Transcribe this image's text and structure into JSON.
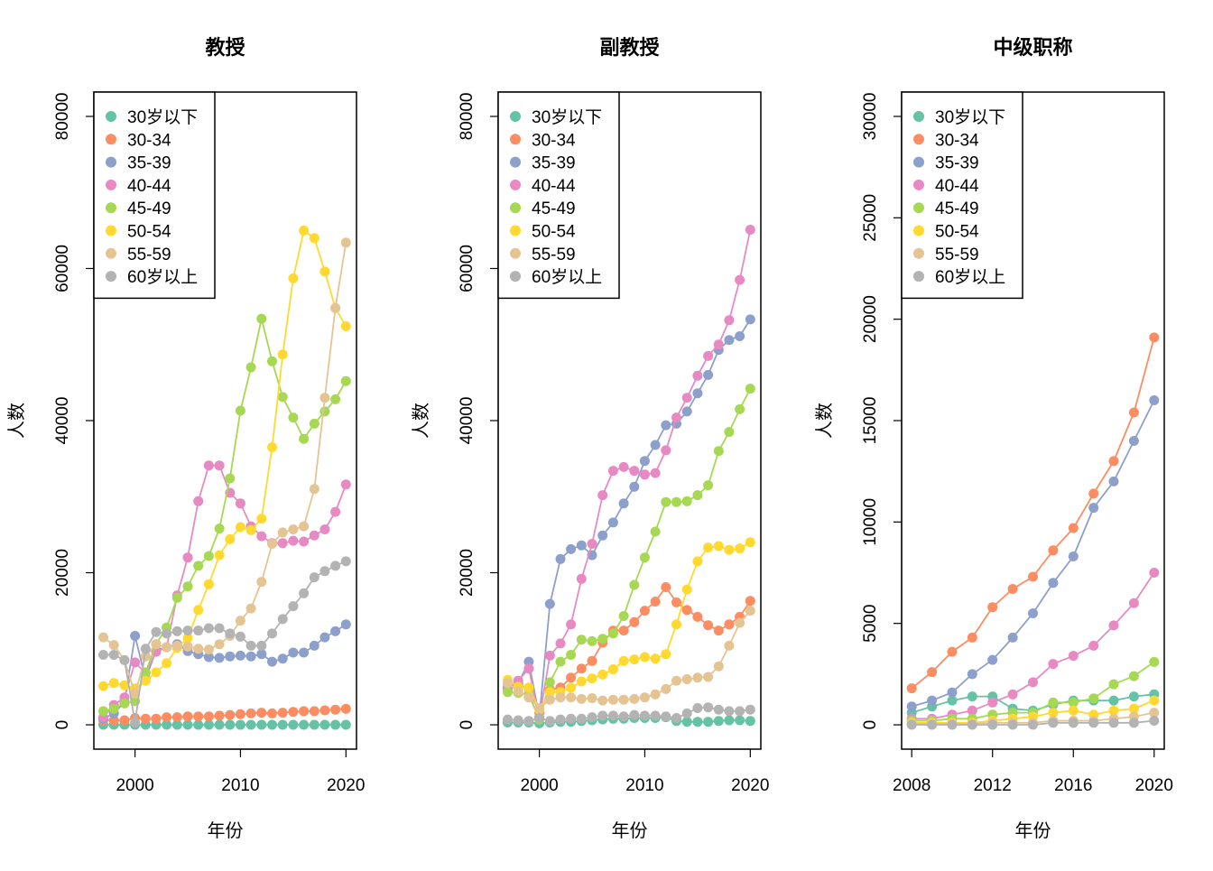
{
  "chart_data": [
    {
      "type": "line",
      "title": "教授",
      "xlabel": "年份",
      "ylabel": "人数",
      "xlim": [
        1996.1,
        2021.0
      ],
      "ylim": [
        -3200,
        83200
      ],
      "xticks": [
        2000,
        2010,
        2020
      ],
      "xtick_labels": [
        "2000",
        "2010",
        "2020"
      ],
      "yticks": [
        0,
        20000,
        40000,
        60000,
        80000
      ],
      "ytick_labels": [
        "0",
        "20000",
        "40000",
        "60000",
        "80000"
      ],
      "legend_position": "top-left",
      "grid": false,
      "x": [
        1997,
        1998,
        1999,
        2000,
        2001,
        2002,
        2003,
        2004,
        2005,
        2006,
        2007,
        2008,
        2009,
        2010,
        2011,
        2012,
        2013,
        2014,
        2015,
        2016,
        2017,
        2018,
        2019,
        2020
      ],
      "series": [
        {
          "name": "30岁以下",
          "color": "#66c2a5",
          "values": [
            0,
            0,
            0,
            0,
            0,
            0,
            0,
            0,
            0,
            0,
            0,
            0,
            0,
            0,
            0,
            0,
            0,
            0,
            0,
            0,
            0,
            0,
            0,
            0
          ]
        },
        {
          "name": "30-34",
          "color": "#fc8d62",
          "values": [
            600,
            600,
            600,
            900,
            800,
            800,
            1000,
            1000,
            1100,
            1100,
            1100,
            1200,
            1300,
            1400,
            1500,
            1600,
            1500,
            1600,
            1700,
            1800,
            1800,
            1900,
            2000,
            2100
          ]
        },
        {
          "name": "35-39",
          "color": "#8da0cb",
          "values": [
            800,
            1500,
            3000,
            11700,
            6000,
            9800,
            10200,
            10600,
            9700,
            9300,
            8900,
            8800,
            9000,
            9100,
            9000,
            9300,
            8300,
            8700,
            9500,
            9500,
            10400,
            11500,
            12300,
            13200
          ]
        },
        {
          "name": "40-44",
          "color": "#e78ac3",
          "values": [
            1000,
            2600,
            3600,
            8200,
            6800,
            9600,
            10200,
            17000,
            22000,
            29400,
            34100,
            34100,
            30500,
            29100,
            26100,
            24800,
            23900,
            23900,
            24200,
            24100,
            24900,
            25700,
            28000,
            31600
          ]
        },
        {
          "name": "45-49",
          "color": "#a6d854",
          "values": [
            1800,
            2100,
            2800,
            3100,
            6900,
            10600,
            12800,
            16700,
            18200,
            20900,
            22200,
            25800,
            32400,
            41300,
            47000,
            53400,
            47800,
            43100,
            40400,
            37600,
            39600,
            41200,
            42800,
            45200
          ]
        },
        {
          "name": "50-54",
          "color": "#ffd92f",
          "values": [
            5100,
            5500,
            5200,
            4800,
            5800,
            6900,
            8100,
            10100,
            11400,
            15100,
            18500,
            22300,
            24400,
            26000,
            25600,
            27100,
            36500,
            48700,
            58700,
            65000,
            64000,
            59600,
            54800,
            52400
          ]
        },
        {
          "name": "55-59",
          "color": "#e5c494",
          "values": [
            11500,
            10500,
            8500,
            4100,
            9000,
            10600,
            10200,
            10400,
            10300,
            10000,
            9900,
            10600,
            11700,
            13700,
            15300,
            18800,
            23800,
            25300,
            25700,
            26100,
            31000,
            43000,
            54800,
            63400
          ]
        },
        {
          "name": "60岁以上",
          "color": "#b3b3b3",
          "values": [
            9200,
            9200,
            8500,
            300,
            10000,
            12200,
            12000,
            12300,
            12400,
            12400,
            12700,
            12700,
            12000,
            11600,
            10400,
            10400,
            12000,
            13900,
            15600,
            17300,
            19400,
            20200,
            20900,
            21500
          ]
        }
      ]
    },
    {
      "type": "line",
      "title": "副教授",
      "xlabel": "年份",
      "ylabel": "人数",
      "xlim": [
        1996.1,
        2021.0
      ],
      "ylim": [
        -3200,
        83200
      ],
      "xticks": [
        2000,
        2010,
        2020
      ],
      "xtick_labels": [
        "2000",
        "2010",
        "2020"
      ],
      "yticks": [
        0,
        20000,
        40000,
        60000,
        80000
      ],
      "ytick_labels": [
        "0",
        "20000",
        "40000",
        "60000",
        "80000"
      ],
      "legend_position": "top-left",
      "grid": false,
      "x": [
        1997,
        1998,
        1999,
        2000,
        2001,
        2002,
        2003,
        2004,
        2005,
        2006,
        2007,
        2008,
        2009,
        2010,
        2011,
        2012,
        2013,
        2014,
        2015,
        2016,
        2017,
        2018,
        2019,
        2020
      ],
      "series": [
        {
          "name": "30岁以下",
          "color": "#66c2a5",
          "values": [
            300,
            300,
            300,
            200,
            300,
            400,
            400,
            500,
            600,
            700,
            800,
            800,
            900,
            900,
            900,
            1000,
            500,
            400,
            400,
            400,
            500,
            600,
            600,
            500
          ]
        },
        {
          "name": "30-34",
          "color": "#fc8d62",
          "values": [
            5000,
            5300,
            4800,
            1600,
            4600,
            4900,
            6200,
            7400,
            8400,
            10800,
            12400,
            12400,
            13500,
            15000,
            16200,
            18100,
            16100,
            15100,
            14200,
            13100,
            12400,
            13200,
            14200,
            16300
          ]
        },
        {
          "name": "35-39",
          "color": "#8da0cb",
          "values": [
            4500,
            5400,
            8300,
            1000,
            15900,
            21800,
            23100,
            23600,
            22300,
            24900,
            26600,
            29100,
            31300,
            34700,
            36800,
            39400,
            39600,
            41200,
            43600,
            46000,
            49300,
            50600,
            51100,
            53300
          ]
        },
        {
          "name": "40-44",
          "color": "#e78ac3",
          "values": [
            4700,
            5800,
            7400,
            900,
            9100,
            10700,
            13200,
            19200,
            23800,
            30200,
            33400,
            33900,
            33400,
            32900,
            33100,
            36100,
            40400,
            43000,
            45900,
            48500,
            50000,
            53200,
            58500,
            65100
          ]
        },
        {
          "name": "45-49",
          "color": "#a6d854",
          "values": [
            4300,
            4200,
            4000,
            700,
            5600,
            8300,
            9200,
            11200,
            11000,
            11300,
            12000,
            14300,
            18400,
            22000,
            25400,
            29300,
            29300,
            29400,
            30200,
            31500,
            36000,
            38500,
            41500,
            44200
          ]
        },
        {
          "name": "50-54",
          "color": "#ffd92f",
          "values": [
            5900,
            5000,
            4900,
            2000,
            4300,
            4300,
            4900,
            5700,
            6100,
            6600,
            7300,
            8400,
            8600,
            8900,
            8700,
            9300,
            13200,
            17800,
            21500,
            23300,
            23500,
            23000,
            23200,
            24000
          ]
        },
        {
          "name": "55-59",
          "color": "#e5c494",
          "values": [
            5500,
            4400,
            3600,
            2200,
            3300,
            3600,
            3600,
            3400,
            3500,
            3200,
            3300,
            3300,
            3400,
            3600,
            4000,
            4700,
            5800,
            6000,
            6200,
            6300,
            7700,
            10400,
            13400,
            15000
          ]
        },
        {
          "name": "60岁以上",
          "color": "#b3b3b3",
          "values": [
            700,
            600,
            500,
            900,
            500,
            700,
            800,
            800,
            1000,
            1200,
            1200,
            1100,
            1300,
            1200,
            1200,
            1100,
            900,
            1500,
            2200,
            2300,
            2000,
            1800,
            1800,
            2000
          ]
        }
      ]
    },
    {
      "type": "line",
      "title": "中级职称",
      "xlabel": "年份",
      "ylabel": "人数",
      "xlim": [
        2007.5,
        2020.5
      ],
      "ylim": [
        -1200,
        31200
      ],
      "xticks": [
        2008,
        2012,
        2016,
        2020
      ],
      "xtick_labels": [
        "2008",
        "2012",
        "2016",
        "2020"
      ],
      "yticks": [
        0,
        5000,
        10000,
        15000,
        20000,
        25000,
        30000
      ],
      "ytick_labels": [
        "0",
        "5000",
        "10000",
        "15000",
        "20000",
        "25000",
        "30000"
      ],
      "legend_position": "top-left",
      "grid": false,
      "x": [
        2008,
        2009,
        2010,
        2011,
        2012,
        2013,
        2014,
        2015,
        2016,
        2017,
        2018,
        2019,
        2020
      ],
      "series": [
        {
          "name": "30岁以下",
          "color": "#66c2a5",
          "values": [
            600,
            900,
            1200,
            1400,
            1400,
            800,
            700,
            1000,
            1200,
            1200,
            1200,
            1400,
            1500
          ]
        },
        {
          "name": "30-34",
          "color": "#fc8d62",
          "values": [
            1800,
            2600,
            3600,
            4300,
            5800,
            6700,
            7300,
            8600,
            9700,
            11400,
            13000,
            15400,
            19100
          ]
        },
        {
          "name": "35-39",
          "color": "#8da0cb",
          "values": [
            900,
            1200,
            1600,
            2500,
            3200,
            4300,
            5500,
            7000,
            8300,
            10700,
            12000,
            14000,
            16000
          ]
        },
        {
          "name": "40-44",
          "color": "#e78ac3",
          "values": [
            300,
            300,
            500,
            700,
            1100,
            1500,
            2100,
            3000,
            3400,
            3900,
            4900,
            6000,
            7500
          ]
        },
        {
          "name": "45-49",
          "color": "#a6d854",
          "values": [
            200,
            200,
            300,
            300,
            500,
            600,
            600,
            1100,
            1100,
            1300,
            2000,
            2400,
            3100
          ]
        },
        {
          "name": "50-54",
          "color": "#ffd92f",
          "values": [
            100,
            100,
            100,
            100,
            200,
            300,
            400,
            600,
            700,
            500,
            700,
            800,
            1200
          ]
        },
        {
          "name": "55-59",
          "color": "#e5c494",
          "values": [
            50,
            50,
            50,
            50,
            100,
            100,
            100,
            200,
            200,
            200,
            300,
            400,
            600
          ]
        },
        {
          "name": "60岁以上",
          "color": "#b3b3b3",
          "values": [
            0,
            0,
            0,
            0,
            0,
            0,
            0,
            100,
            100,
            100,
            100,
            100,
            200
          ]
        }
      ]
    }
  ]
}
